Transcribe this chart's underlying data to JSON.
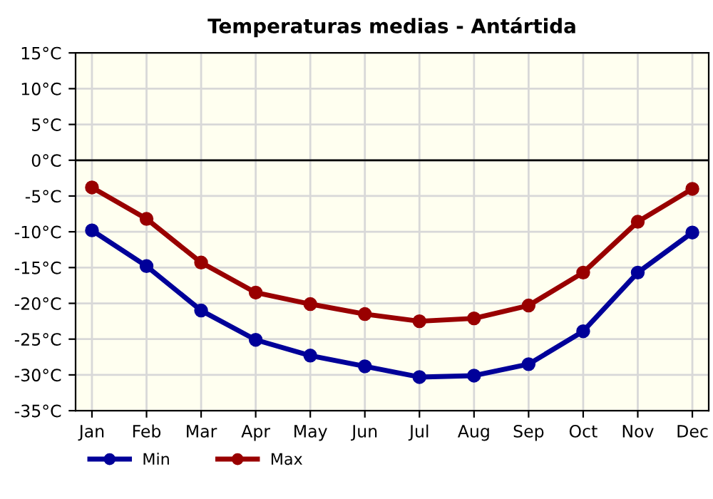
{
  "chart_data": {
    "type": "line",
    "title": "Temperaturas medias - Antártida",
    "categories": [
      "Jan",
      "Feb",
      "Mar",
      "Apr",
      "May",
      "Jun",
      "Jul",
      "Aug",
      "Sep",
      "Oct",
      "Nov",
      "Dec"
    ],
    "series": [
      {
        "name": "Min",
        "color": "#000099",
        "values": [
          -9.8,
          -14.8,
          -21.0,
          -25.1,
          -27.3,
          -28.8,
          -30.3,
          -30.1,
          -28.5,
          -23.9,
          -15.7,
          -10.1
        ]
      },
      {
        "name": "Max",
        "color": "#990000",
        "values": [
          -3.8,
          -8.2,
          -14.3,
          -18.5,
          -20.1,
          -21.5,
          -22.5,
          -22.1,
          -20.3,
          -15.7,
          -8.6,
          -4.0
        ]
      }
    ],
    "ylim": [
      -35,
      15
    ],
    "yticks": [
      {
        "value": -35,
        "label": "-35°C"
      },
      {
        "value": -30,
        "label": "-30°C"
      },
      {
        "value": -25,
        "label": "-25°C"
      },
      {
        "value": -20,
        "label": "-20°C"
      },
      {
        "value": -15,
        "label": "-15°C"
      },
      {
        "value": -10,
        "label": "-10°C"
      },
      {
        "value": -5,
        "label": "-5°C"
      },
      {
        "value": 0,
        "label": "0°C"
      },
      {
        "value": 5,
        "label": "5°C"
      },
      {
        "value": 10,
        "label": "10°C"
      },
      {
        "value": 15,
        "label": "15°C"
      }
    ],
    "ref_lines": [
      {
        "axis": "y",
        "value": 0,
        "color": "#000000"
      }
    ],
    "grid": true,
    "legend": "bottom left",
    "marker": "circle",
    "line_style": "solid"
  }
}
